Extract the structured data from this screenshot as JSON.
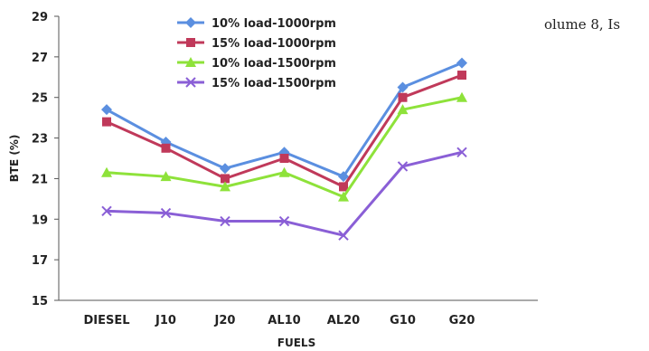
{
  "header_fragment": "olume 8, Is",
  "chart_data": {
    "type": "line",
    "title": "",
    "xlabel": "FUELS",
    "ylabel": "BTE (%)",
    "ylim": [
      15,
      29
    ],
    "yticks": [
      "15",
      "17",
      "19",
      "21",
      "23",
      "25",
      "27",
      "29"
    ],
    "categories": [
      "DIESEL",
      "J10",
      "J20",
      "AL10",
      "AL20",
      "G10",
      "G20"
    ],
    "grid": false,
    "legend_position": "top-left",
    "series": [
      {
        "name": "10% load-1000rpm",
        "color": "#5b8fe0",
        "marker": "diamond",
        "values": [
          24.4,
          22.8,
          21.5,
          22.3,
          21.1,
          25.5,
          26.7
        ]
      },
      {
        "name": "15% load-1000rpm",
        "color": "#c0395a",
        "marker": "square",
        "values": [
          23.8,
          22.5,
          21.0,
          22.0,
          20.6,
          25.0,
          26.1
        ]
      },
      {
        "name": "10% load-1500rpm",
        "color": "#8ee23a",
        "marker": "triangle",
        "values": [
          21.3,
          21.1,
          20.6,
          21.3,
          20.1,
          24.4,
          25.0
        ]
      },
      {
        "name": "15% load-1500rpm",
        "color": "#8a5fd6",
        "marker": "x",
        "values": [
          19.4,
          19.3,
          18.9,
          18.9,
          18.2,
          21.6,
          22.3
        ]
      }
    ]
  }
}
